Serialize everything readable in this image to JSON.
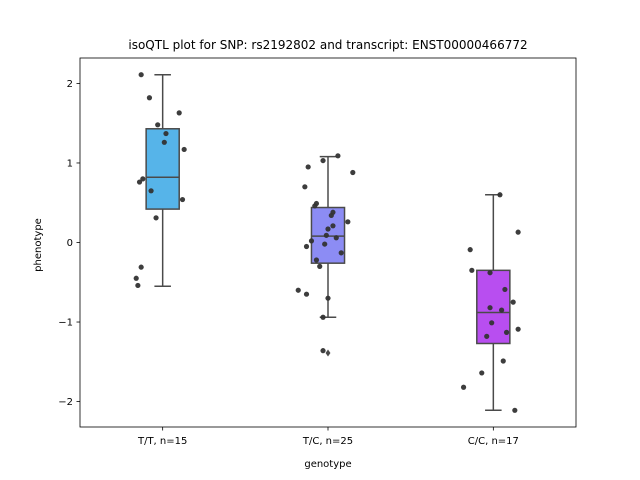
{
  "chart_data": {
    "type": "box",
    "title": "isoQTL plot for SNP: rs2192802 and transcript: ENST00000466772",
    "xlabel": "genotype",
    "ylabel": "phenotype",
    "ylim": [
      -2.32,
      2.32
    ],
    "yticks": [
      -2,
      -1,
      0,
      1,
      2
    ],
    "ytick_labels": [
      "−2",
      "−1",
      "0",
      "1",
      "2"
    ],
    "grid": false,
    "categories": [
      "T/T, n=15",
      "T/C, n=25",
      "C/C, n=17"
    ],
    "colors": [
      "#56b4e9",
      "#8c8cf4",
      "#b84ef0"
    ],
    "boxes": [
      {
        "q1": 0.42,
        "median": 0.82,
        "q3": 1.43,
        "whisker_low": -0.55,
        "whisker_high": 2.11,
        "outliers": []
      },
      {
        "q1": -0.26,
        "median": 0.08,
        "q3": 0.44,
        "whisker_low": -0.94,
        "whisker_high": 1.08,
        "outliers": [
          -1.39
        ]
      },
      {
        "q1": -1.27,
        "median": -0.88,
        "q3": -0.35,
        "whisker_low": -2.11,
        "whisker_high": 0.6,
        "outliers": []
      }
    ],
    "points": [
      {
        "group": 0,
        "jitter": -0.13,
        "y": 2.11
      },
      {
        "group": 0,
        "jitter": -0.08,
        "y": 1.82
      },
      {
        "group": 0,
        "jitter": 0.1,
        "y": 1.63
      },
      {
        "group": 0,
        "jitter": -0.03,
        "y": 1.48
      },
      {
        "group": 0,
        "jitter": 0.02,
        "y": 1.37
      },
      {
        "group": 0,
        "jitter": 0.01,
        "y": 1.26
      },
      {
        "group": 0,
        "jitter": 0.13,
        "y": 1.17
      },
      {
        "group": 0,
        "jitter": -0.12,
        "y": 0.8
      },
      {
        "group": 0,
        "jitter": -0.14,
        "y": 0.76
      },
      {
        "group": 0,
        "jitter": -0.07,
        "y": 0.65
      },
      {
        "group": 0,
        "jitter": 0.12,
        "y": 0.54
      },
      {
        "group": 0,
        "jitter": -0.04,
        "y": 0.31
      },
      {
        "group": 0,
        "jitter": -0.13,
        "y": -0.31
      },
      {
        "group": 0,
        "jitter": -0.16,
        "y": -0.45
      },
      {
        "group": 0,
        "jitter": -0.15,
        "y": -0.54
      },
      {
        "group": 1,
        "jitter": 0.06,
        "y": 1.09
      },
      {
        "group": 1,
        "jitter": -0.03,
        "y": 1.03
      },
      {
        "group": 1,
        "jitter": -0.12,
        "y": 0.95
      },
      {
        "group": 1,
        "jitter": 0.15,
        "y": 0.88
      },
      {
        "group": 1,
        "jitter": -0.14,
        "y": 0.7
      },
      {
        "group": 1,
        "jitter": -0.07,
        "y": 0.49
      },
      {
        "group": 1,
        "jitter": -0.08,
        "y": 0.46
      },
      {
        "group": 1,
        "jitter": 0.03,
        "y": 0.38
      },
      {
        "group": 1,
        "jitter": 0.02,
        "y": 0.34
      },
      {
        "group": 1,
        "jitter": 0.12,
        "y": 0.26
      },
      {
        "group": 1,
        "jitter": 0.03,
        "y": 0.21
      },
      {
        "group": 1,
        "jitter": 0.0,
        "y": 0.17
      },
      {
        "group": 1,
        "jitter": -0.1,
        "y": 0.02
      },
      {
        "group": 1,
        "jitter": -0.01,
        "y": 0.09
      },
      {
        "group": 1,
        "jitter": 0.05,
        "y": 0.06
      },
      {
        "group": 1,
        "jitter": -0.02,
        "y": -0.02
      },
      {
        "group": 1,
        "jitter": -0.13,
        "y": -0.05
      },
      {
        "group": 1,
        "jitter": 0.08,
        "y": -0.13
      },
      {
        "group": 1,
        "jitter": -0.07,
        "y": -0.22
      },
      {
        "group": 1,
        "jitter": -0.05,
        "y": -0.3
      },
      {
        "group": 1,
        "jitter": -0.18,
        "y": -0.6
      },
      {
        "group": 1,
        "jitter": -0.13,
        "y": -0.65
      },
      {
        "group": 1,
        "jitter": 0.0,
        "y": -0.7
      },
      {
        "group": 1,
        "jitter": -0.03,
        "y": -0.94
      },
      {
        "group": 1,
        "jitter": -0.03,
        "y": -1.36
      },
      {
        "group": 2,
        "jitter": 0.04,
        "y": 0.6
      },
      {
        "group": 2,
        "jitter": 0.15,
        "y": 0.13
      },
      {
        "group": 2,
        "jitter": -0.14,
        "y": -0.09
      },
      {
        "group": 2,
        "jitter": -0.13,
        "y": -0.35
      },
      {
        "group": 2,
        "jitter": -0.02,
        "y": -0.38
      },
      {
        "group": 2,
        "jitter": 0.07,
        "y": -0.59
      },
      {
        "group": 2,
        "jitter": 0.12,
        "y": -0.75
      },
      {
        "group": 2,
        "jitter": -0.02,
        "y": -0.82
      },
      {
        "group": 2,
        "jitter": 0.05,
        "y": -0.85
      },
      {
        "group": 2,
        "jitter": -0.01,
        "y": -1.01
      },
      {
        "group": 2,
        "jitter": 0.15,
        "y": -1.09
      },
      {
        "group": 2,
        "jitter": 0.08,
        "y": -1.13
      },
      {
        "group": 2,
        "jitter": -0.04,
        "y": -1.18
      },
      {
        "group": 2,
        "jitter": 0.06,
        "y": -1.49
      },
      {
        "group": 2,
        "jitter": -0.07,
        "y": -1.64
      },
      {
        "group": 2,
        "jitter": -0.18,
        "y": -1.82
      },
      {
        "group": 2,
        "jitter": 0.13,
        "y": -2.11
      }
    ]
  }
}
